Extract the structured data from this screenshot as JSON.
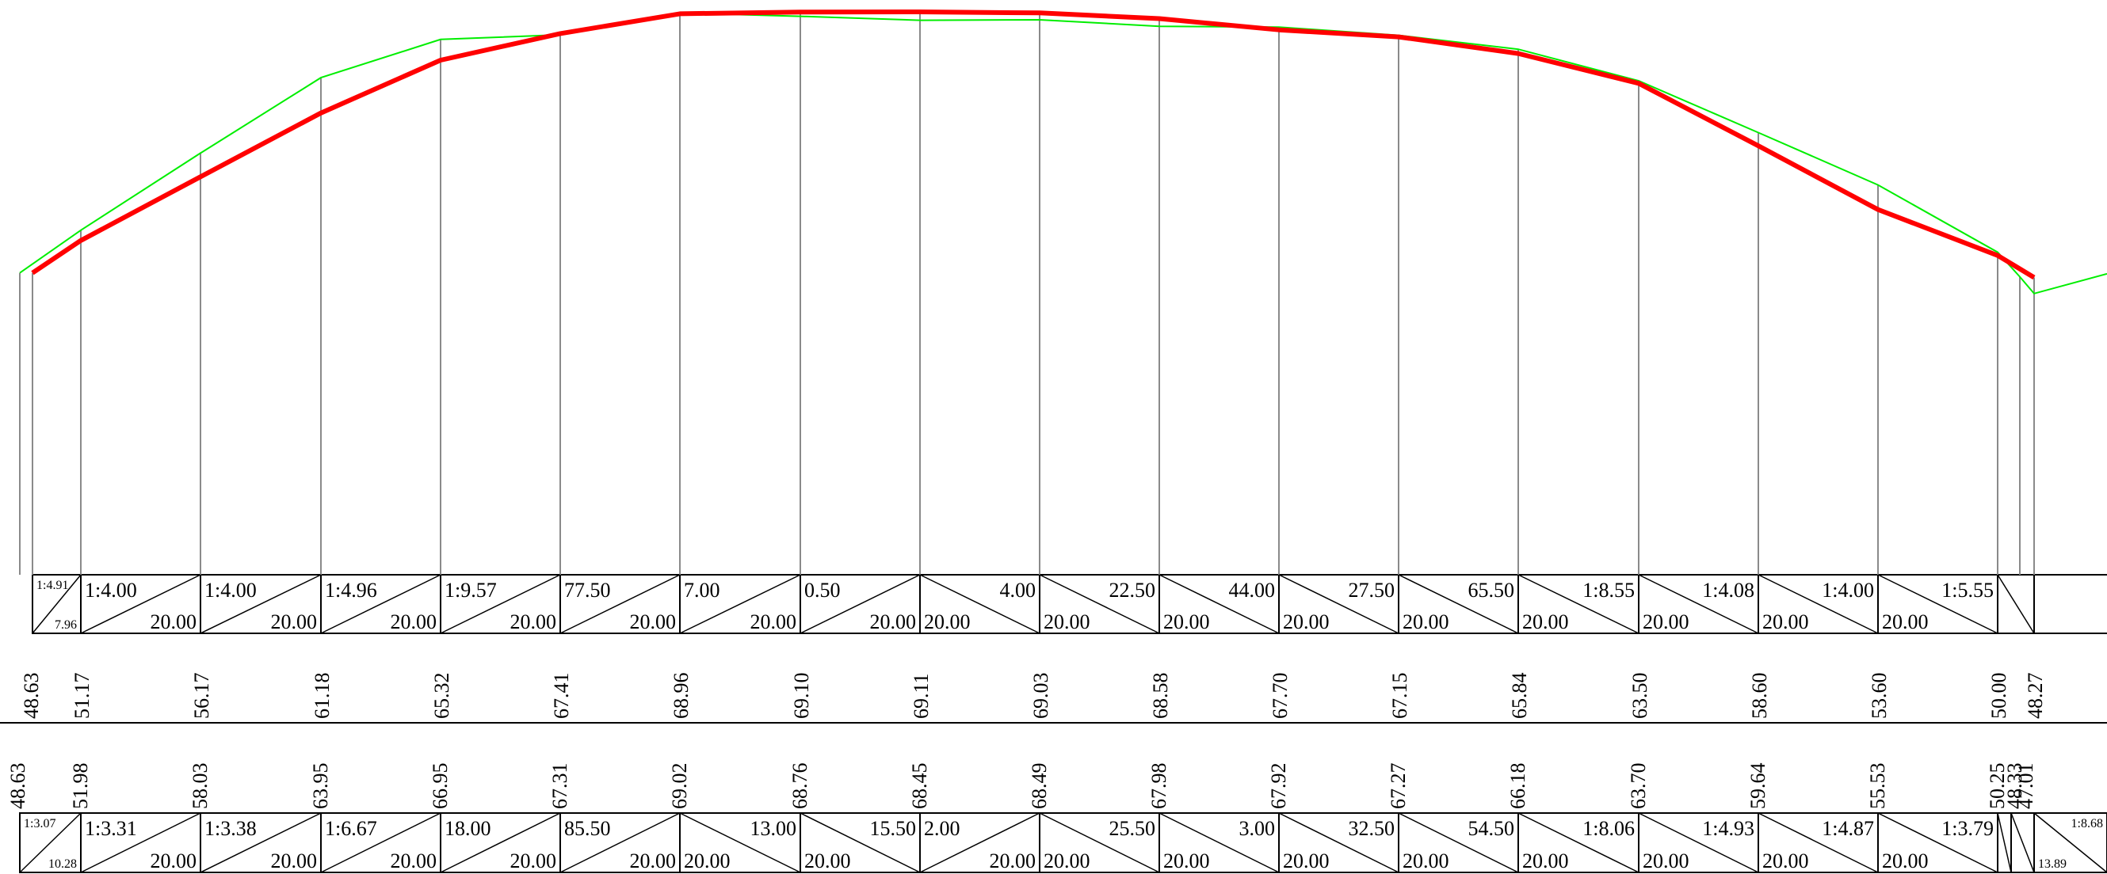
{
  "chart_data": {
    "type": "line",
    "series": [
      {
        "values": [
          48.63,
          51.17,
          56.17,
          61.18,
          65.32,
          67.41,
          68.96,
          69.1,
          69.11,
          69.03,
          68.58,
          67.7,
          67.15,
          65.84,
          63.5,
          58.6,
          53.6,
          50.0,
          48.27
        ]
      },
      {
        "values": [
          48.63,
          51.98,
          58.03,
          63.95,
          66.95,
          67.31,
          69.02,
          68.76,
          68.45,
          68.49,
          67.98,
          67.92,
          67.27,
          66.18,
          63.7,
          59.64,
          55.53,
          50.25,
          48.33,
          47.01
        ]
      }
    ],
    "colors": {
      "design_line": "#ff0000",
      "ground_line": "#00ee00"
    }
  },
  "top_grade_cells": [
    {
      "top": "1:4.91",
      "bottom": "7.96",
      "diag": "up",
      "small": true
    },
    {
      "top": "1:4.00",
      "bottom": "20.00",
      "diag": "up"
    },
    {
      "top": "1:4.00",
      "bottom": "20.00",
      "diag": "up"
    },
    {
      "top": "1:4.96",
      "bottom": "20.00",
      "diag": "up"
    },
    {
      "top": "1:9.57",
      "bottom": "20.00",
      "diag": "up"
    },
    {
      "top": "77.50",
      "bottom": "20.00",
      "diag": "up"
    },
    {
      "top": "7.00",
      "bottom": "20.00",
      "diag": "up"
    },
    {
      "top": "0.50",
      "bottom": "20.00",
      "diag": "up"
    },
    {
      "top": "4.00",
      "bottom": "20.00",
      "diag": "down"
    },
    {
      "top": "22.50",
      "bottom": "20.00",
      "diag": "down"
    },
    {
      "top": "44.00",
      "bottom": "20.00",
      "diag": "down"
    },
    {
      "top": "27.50",
      "bottom": "20.00",
      "diag": "down"
    },
    {
      "top": "65.50",
      "bottom": "20.00",
      "diag": "down"
    },
    {
      "top": "1:8.55",
      "bottom": "20.00",
      "diag": "down"
    },
    {
      "top": "1:4.08",
      "bottom": "20.00",
      "diag": "down"
    },
    {
      "top": "1:4.00",
      "bottom": "20.00",
      "diag": "down"
    },
    {
      "top": "1:5.55",
      "bottom": "20.00",
      "diag": "down"
    },
    {
      "top": "",
      "bottom": "",
      "diag": "down"
    }
  ],
  "bottom_grade_cells": [
    {
      "top": "1:3.07",
      "bottom": "10.28",
      "diag": "up",
      "small": true
    },
    {
      "top": "1:3.31",
      "bottom": "20.00",
      "diag": "up"
    },
    {
      "top": "1:3.38",
      "bottom": "20.00",
      "diag": "up"
    },
    {
      "top": "1:6.67",
      "bottom": "20.00",
      "diag": "up"
    },
    {
      "top": "18.00",
      "bottom": "20.00",
      "diag": "up"
    },
    {
      "top": "85.50",
      "bottom": "20.00",
      "diag": "up"
    },
    {
      "top": "13.00",
      "bottom": "20.00",
      "diag": "down"
    },
    {
      "top": "15.50",
      "bottom": "20.00",
      "diag": "down"
    },
    {
      "top": "2.00",
      "bottom": "20.00",
      "diag": "up"
    },
    {
      "top": "25.50",
      "bottom": "20.00",
      "diag": "down"
    },
    {
      "top": "3.00",
      "bottom": "20.00",
      "diag": "down"
    },
    {
      "top": "32.50",
      "bottom": "20.00",
      "diag": "down"
    },
    {
      "top": "54.50",
      "bottom": "20.00",
      "diag": "down"
    },
    {
      "top": "1:8.06",
      "bottom": "20.00",
      "diag": "down"
    },
    {
      "top": "1:4.93",
      "bottom": "20.00",
      "diag": "down"
    },
    {
      "top": "1:4.87",
      "bottom": "20.00",
      "diag": "down"
    },
    {
      "top": "1:3.79",
      "bottom": "20.00",
      "diag": "down"
    },
    {
      "top": "",
      "bottom": "",
      "diag": "down"
    },
    {
      "top": "",
      "bottom": "",
      "diag": "down"
    },
    {
      "top": "1:8.68",
      "bottom": "13.89",
      "diag": "down",
      "small": true
    }
  ]
}
